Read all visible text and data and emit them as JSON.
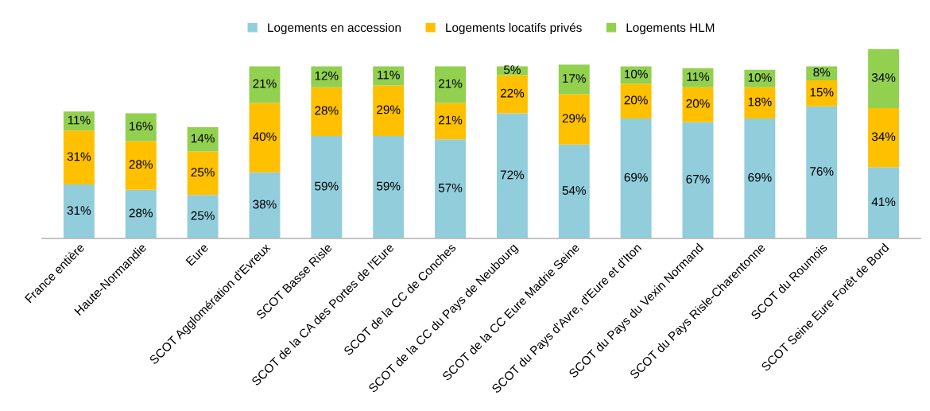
{
  "chart_data": {
    "type": "bar",
    "stacked": true,
    "legend": "top",
    "grid": false,
    "categories": [
      "France entière",
      "Haute-Normandie",
      "Eure",
      "SCOT Agglomération d'Evreux",
      "SCOT Basse Risle",
      "SCOT de la CA des Portes de l'Eure",
      "SCOT de la CC de Conches",
      "SCOT de la CC du Pays de Neubourg",
      "SCOT de la CC Eure Madrie Seine",
      "SCOT du Pays d'Avre, d'Eure et d'Iton",
      "SCOT du Pays du Vexin Normand",
      "SCOT du Pays Risle-Charentonne",
      "SCOT du Roumois",
      "SCOT Seine Eure Forêt de Bord"
    ],
    "series": [
      {
        "name": "Logements en accession",
        "color": "#92cddc",
        "values": [
          31,
          28,
          25,
          38,
          59,
          59,
          57,
          72,
          54,
          69,
          67,
          69,
          76,
          41
        ],
        "value_labels": [
          "31%",
          "28%",
          "25%",
          "38%",
          "59%",
          "59%",
          "57%",
          "72%",
          "54%",
          "69%",
          "67%",
          "69%",
          "76%",
          "41%"
        ]
      },
      {
        "name": "Logements locatifs privés",
        "color": "#ffc000",
        "values": [
          31,
          28,
          25,
          40,
          28,
          29,
          21,
          22,
          29,
          20,
          20,
          18,
          15,
          34
        ],
        "value_labels": [
          "31%",
          "28%",
          "25%",
          "40%",
          "28%",
          "29%",
          "21%",
          "22%",
          "29%",
          "20%",
          "20%",
          "18%",
          "15%",
          "34%"
        ]
      },
      {
        "name": "Logements HLM",
        "color": "#92d050",
        "values": [
          11,
          16,
          14,
          21,
          12,
          11,
          21,
          5,
          17,
          10,
          11,
          10,
          8,
          34
        ],
        "value_labels": [
          "11%",
          "16%",
          "14%",
          "21%",
          "12%",
          "11%",
          "21%",
          "5%",
          "17%",
          "10%",
          "11%",
          "10%",
          "8%",
          "34%"
        ]
      }
    ]
  }
}
